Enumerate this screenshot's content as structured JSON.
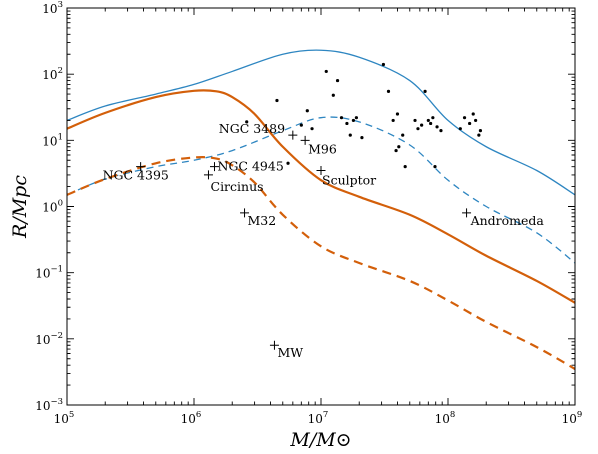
{
  "chart_data": {
    "type": "line",
    "xscale": "log",
    "yscale": "log",
    "xlim": [
      100000,
      1000000000
    ],
    "ylim": [
      0.001,
      1000
    ],
    "grid": false,
    "legend": "none",
    "xlabel": "M/M⊙",
    "ylabel": "R/Mpc",
    "xticks": [
      {
        "value": 100000,
        "base": "10",
        "exp": "5"
      },
      {
        "value": 1000000,
        "base": "10",
        "exp": "6"
      },
      {
        "value": 10000000,
        "base": "10",
        "exp": "7"
      },
      {
        "value": 100000000,
        "base": "10",
        "exp": "8"
      },
      {
        "value": 1000000000,
        "base": "10",
        "exp": "9"
      }
    ],
    "yticks": [
      {
        "value": 0.001,
        "base": "10",
        "exp": "−3"
      },
      {
        "value": 0.01,
        "base": "10",
        "exp": "−2"
      },
      {
        "value": 0.1,
        "base": "10",
        "exp": "−1"
      },
      {
        "value": 1,
        "base": "10",
        "exp": "0"
      },
      {
        "value": 10,
        "base": "10",
        "exp": "1"
      },
      {
        "value": 100,
        "base": "10",
        "exp": "2"
      },
      {
        "value": 1000,
        "base": "10",
        "exp": "3"
      }
    ],
    "series": [
      {
        "color": "#2e86c1",
        "style": "solid",
        "width": 1.3,
        "x": [
          100000,
          200000,
          500000,
          1000000,
          2000000,
          5000000,
          10000000,
          20000000,
          50000000,
          100000000,
          200000000,
          500000000,
          1000000000
        ],
        "y": [
          20,
          33,
          50,
          70,
          110,
          200,
          230,
          180,
          80,
          20,
          8,
          3.5,
          1.5
        ]
      },
      {
        "color": "#2e86c1",
        "style": "dashed",
        "width": 1.3,
        "x": [
          100000,
          200000,
          500000,
          1000000,
          2000000,
          5000000,
          10000000,
          20000000,
          50000000,
          100000000,
          200000000,
          500000000,
          1000000000
        ],
        "y": [
          1.5,
          2.6,
          4.0,
          5.0,
          7.0,
          14,
          22,
          19,
          8.5,
          2.5,
          1.0,
          0.4,
          0.14
        ]
      },
      {
        "color": "#d35f0a",
        "style": "solid",
        "width": 2.2,
        "x": [
          100000,
          200000,
          500000,
          1000000,
          1500000,
          2000000,
          3000000,
          5000000,
          10000000,
          20000000,
          50000000,
          100000000,
          200000000,
          500000000,
          1000000000
        ],
        "y": [
          15,
          26,
          45,
          56,
          55,
          45,
          25,
          8,
          2.5,
          1.4,
          0.75,
          0.38,
          0.18,
          0.075,
          0.035
        ]
      },
      {
        "color": "#d35f0a",
        "style": "dashed",
        "width": 2.2,
        "x": [
          100000,
          200000,
          500000,
          1000000,
          1500000,
          2000000,
          3000000,
          5000000,
          10000000,
          20000000,
          50000000,
          100000000,
          200000000,
          500000000,
          1000000000
        ],
        "y": [
          1.5,
          2.6,
          4.5,
          5.5,
          5.3,
          4.2,
          2.3,
          0.75,
          0.25,
          0.14,
          0.075,
          0.038,
          0.018,
          0.0075,
          0.0035
        ]
      }
    ],
    "labeled_points": [
      {
        "name": "NGC 4395",
        "x": 380000,
        "y": 4.0
      },
      {
        "name": "Circinus",
        "x": 1300000,
        "y": 3.0
      },
      {
        "name": "NGC 4945",
        "x": 1450000,
        "y": 4.0
      },
      {
        "name": "NGC 3489",
        "x": 6000000,
        "y": 12
      },
      {
        "name": "M96",
        "x": 7500000,
        "y": 10
      },
      {
        "name": "Sculptor",
        "x": 10000000,
        "y": 3.5
      },
      {
        "name": "M32",
        "x": 2500000,
        "y": 0.8
      },
      {
        "name": "Andromeda",
        "x": 140000000,
        "y": 0.8
      },
      {
        "name": "MW",
        "x": 4300000,
        "y": 0.008
      }
    ],
    "dots": [
      {
        "x": 2600000,
        "y": 19
      },
      {
        "x": 4500000,
        "y": 40
      },
      {
        "x": 5500000,
        "y": 4.5
      },
      {
        "x": 7000000,
        "y": 17
      },
      {
        "x": 7800000,
        "y": 28
      },
      {
        "x": 8500000,
        "y": 15
      },
      {
        "x": 11000000,
        "y": 110
      },
      {
        "x": 12500000,
        "y": 48
      },
      {
        "x": 13500000,
        "y": 80
      },
      {
        "x": 14500000,
        "y": 22
      },
      {
        "x": 16000000,
        "y": 18
      },
      {
        "x": 17000000,
        "y": 12
      },
      {
        "x": 18000000,
        "y": 20
      },
      {
        "x": 19000000,
        "y": 22
      },
      {
        "x": 21000000,
        "y": 11
      },
      {
        "x": 31000000,
        "y": 140
      },
      {
        "x": 34000000,
        "y": 55
      },
      {
        "x": 37000000,
        "y": 20
      },
      {
        "x": 39000000,
        "y": 7
      },
      {
        "x": 40000000,
        "y": 25
      },
      {
        "x": 41000000,
        "y": 8
      },
      {
        "x": 44000000,
        "y": 12
      },
      {
        "x": 46000000,
        "y": 4
      },
      {
        "x": 55000000,
        "y": 20
      },
      {
        "x": 58000000,
        "y": 15
      },
      {
        "x": 62000000,
        "y": 17
      },
      {
        "x": 66000000,
        "y": 55
      },
      {
        "x": 70000000,
        "y": 20
      },
      {
        "x": 73000000,
        "y": 18
      },
      {
        "x": 76000000,
        "y": 22
      },
      {
        "x": 79000000,
        "y": 4
      },
      {
        "x": 82000000,
        "y": 16
      },
      {
        "x": 88000000,
        "y": 14
      },
      {
        "x": 125000000,
        "y": 15
      },
      {
        "x": 135000000,
        "y": 22
      },
      {
        "x": 148000000,
        "y": 18
      },
      {
        "x": 158000000,
        "y": 25
      },
      {
        "x": 165000000,
        "y": 20
      },
      {
        "x": 175000000,
        "y": 12
      },
      {
        "x": 180000000,
        "y": 14
      }
    ]
  }
}
